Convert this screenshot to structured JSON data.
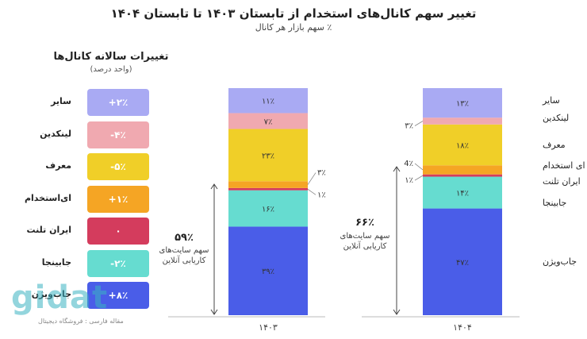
{
  "title": "تغییر سهم کانال‌های استخدام از تابستان ۱۴۰۳ تا تابستان ۱۴۰۴",
  "subtitle": "٪ سهم بازار هر کانال",
  "changes": {
    "title": "تغییرات سالانه کانال‌ها",
    "subtitle": "(واحد درصد)",
    "items": [
      {
        "label": "سایر",
        "value": "+۲٪",
        "color": "#a9aaf3"
      },
      {
        "label": "لینکدین",
        "value": "-۴٪",
        "color": "#f0a9b0"
      },
      {
        "label": "معرف",
        "value": "-۵٪",
        "color": "#f0cf28"
      },
      {
        "label": "ای‌استخدام",
        "value": "+۱٪",
        "color": "#f5a524"
      },
      {
        "label": "ایران تلنت",
        "value": "۰",
        "color": "#d43c5d"
      },
      {
        "label": "جابینجا",
        "value": "-۲٪",
        "color": "#66dcd0"
      },
      {
        "label": "جاب‌ویژن",
        "value": "+۸٪",
        "color": "#4a5de8"
      }
    ]
  },
  "annotations": {
    "y1403_pct": "۵۹٪",
    "y1403_line1": "سهم سایت‌های",
    "y1403_line2": "کاریابی آنلاین",
    "y1404_pct": "۶۶٪",
    "y1404_line1": "سهم سایت‌های",
    "y1404_line2": "کاریابی آنلاین"
  },
  "watermark": {
    "logo": "gidat",
    "tagline": "مقاله فارسی : فروشگاه دیجیتال"
  },
  "chart_data": {
    "type": "bar",
    "stacked": true,
    "title": "تغییر سهم کانال‌های استخدام از تابستان ۱۴۰۳ تا تابستان ۱۴۰۴",
    "categories": [
      "۱۴۰۳",
      "۱۴۰۴"
    ],
    "series": [
      {
        "name": "جاب‌ویژن",
        "values": [
          39,
          47
        ],
        "labels": [
          "۳۹٪",
          "۴۷٪"
        ],
        "color": "#4a5de8"
      },
      {
        "name": "جابینجا",
        "values": [
          16,
          14
        ],
        "labels": [
          "۱۶٪",
          "۱۴٪"
        ],
        "color": "#66dcd0"
      },
      {
        "name": "ایران تلنت",
        "values": [
          1,
          1
        ],
        "labels": [
          "۱٪",
          "۱٪"
        ],
        "color": "#d43c5d"
      },
      {
        "name": "ای استخدام",
        "values": [
          3,
          4
        ],
        "labels": [
          "۳٪",
          "4٪"
        ],
        "color": "#f5a524"
      },
      {
        "name": "معرف",
        "values": [
          23,
          18
        ],
        "labels": [
          "۲۳٪",
          "۱۸٪"
        ],
        "color": "#f0cf28"
      },
      {
        "name": "لینکدین",
        "values": [
          7,
          3
        ],
        "labels": [
          "۷٪",
          "۳٪"
        ],
        "color": "#f0a9b0"
      },
      {
        "name": "سایر",
        "values": [
          11,
          13
        ],
        "labels": [
          "۱۱٪",
          "۱۳٪"
        ],
        "color": "#a9aaf3"
      }
    ],
    "ylim": [
      0,
      100
    ]
  }
}
